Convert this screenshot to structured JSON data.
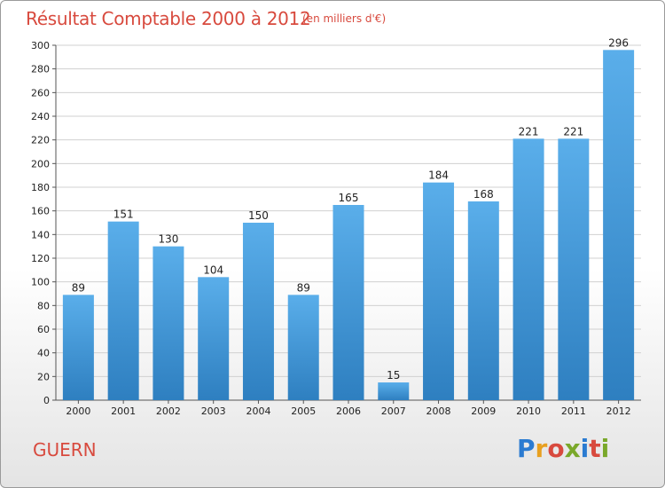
{
  "header": {
    "title": "Résultat Comptable 2000 à 2012",
    "subtitle": "(en milliers d'€)"
  },
  "footer": {
    "place": "GUERN",
    "logo_text": "Proxiti",
    "logo_colors": [
      "#2b7bd1",
      "#e8a020",
      "#d84a3e",
      "#7aa82a",
      "#2b7bd1",
      "#d84a3e",
      "#7aa82a"
    ]
  },
  "colors": {
    "bar_top": "#5aaeea",
    "bar_bottom": "#2e7fc0",
    "grid": "#d0d0d0",
    "axis_text": "#222222"
  },
  "chart_data": {
    "type": "bar",
    "title": "Résultat Comptable 2000 à 2012",
    "subtitle": "(en milliers d'€)",
    "categories": [
      "2000",
      "2001",
      "2002",
      "2003",
      "2004",
      "2005",
      "2006",
      "2007",
      "2008",
      "2009",
      "2010",
      "2011",
      "2012"
    ],
    "values": [
      89,
      151,
      130,
      104,
      150,
      89,
      165,
      15,
      184,
      168,
      221,
      221,
      296
    ],
    "data_labels": [
      "89",
      "151",
      "130",
      "104",
      "150",
      "89",
      "165",
      "15",
      "184",
      "168",
      "221",
      "221",
      "296"
    ],
    "y_ticks": [
      "0",
      "20",
      "40",
      "60",
      "80",
      "100",
      "120",
      "140",
      "160",
      "180",
      "200",
      "220",
      "240",
      "260",
      "280",
      "300"
    ],
    "ylim": [
      0,
      300
    ],
    "grid": true,
    "legend": "none"
  }
}
